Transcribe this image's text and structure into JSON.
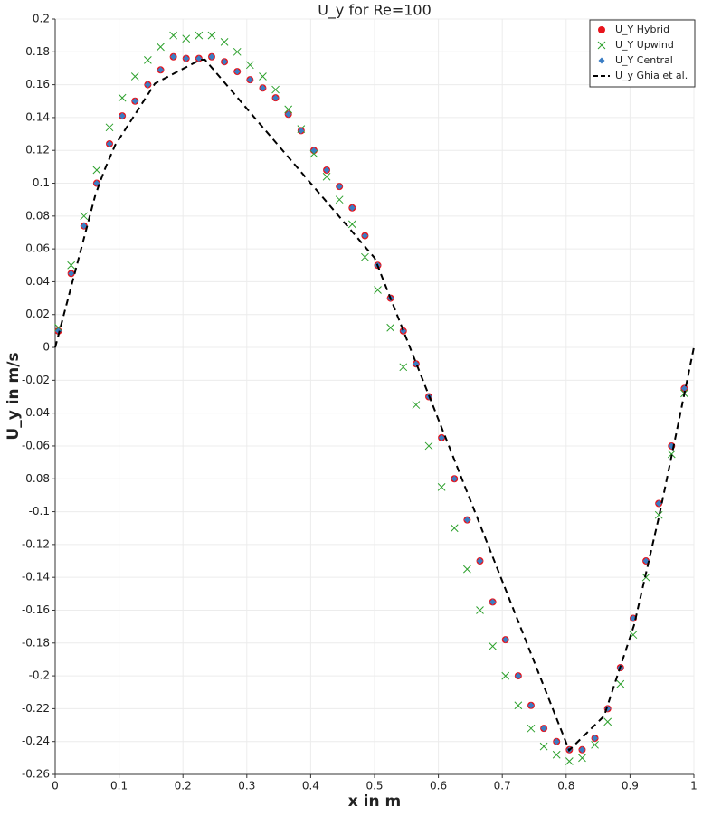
{
  "chart_data": {
    "type": "scatter",
    "title": "U_y for Re=100",
    "xlabel": "x in m",
    "ylabel": "U_y in m/s",
    "xlim": [
      0,
      1
    ],
    "xticks": [
      0,
      0.1,
      0.2,
      0.3,
      0.4,
      0.5,
      0.6,
      0.7,
      0.8,
      0.9,
      1
    ],
    "ylim": [
      -0.26,
      0.2
    ],
    "yticks": [
      -0.26,
      -0.24,
      -0.22,
      -0.2,
      -0.18,
      -0.16,
      -0.14,
      -0.12,
      -0.1,
      -0.08,
      -0.06,
      -0.04,
      -0.02,
      0,
      0.02,
      0.04,
      0.06,
      0.08,
      0.1,
      0.12,
      0.14,
      0.16,
      0.18,
      0.2
    ],
    "grid": true,
    "legend": "upper right",
    "series": [
      {
        "name": "U_Y Hybrid",
        "color": "#e8141c",
        "marker": "circle",
        "x": [
          0.005,
          0.025,
          0.045,
          0.065,
          0.085,
          0.105,
          0.125,
          0.145,
          0.165,
          0.185,
          0.205,
          0.225,
          0.245,
          0.265,
          0.285,
          0.305,
          0.325,
          0.345,
          0.365,
          0.385,
          0.405,
          0.425,
          0.445,
          0.465,
          0.485,
          0.505,
          0.525,
          0.545,
          0.565,
          0.585,
          0.605,
          0.625,
          0.645,
          0.665,
          0.685,
          0.705,
          0.725,
          0.745,
          0.765,
          0.785,
          0.805,
          0.825,
          0.845,
          0.865,
          0.885,
          0.905,
          0.925,
          0.945,
          0.965,
          0.985
        ],
        "values": [
          0.01,
          0.045,
          0.074,
          0.1,
          0.124,
          0.141,
          0.15,
          0.16,
          0.169,
          0.177,
          0.176,
          0.176,
          0.177,
          0.174,
          0.168,
          0.163,
          0.158,
          0.152,
          0.142,
          0.132,
          0.12,
          0.108,
          0.098,
          0.085,
          0.068,
          0.05,
          0.03,
          0.01,
          -0.01,
          -0.03,
          -0.055,
          -0.08,
          -0.105,
          -0.13,
          -0.155,
          -0.178,
          -0.2,
          -0.218,
          -0.232,
          -0.24,
          -0.245,
          -0.245,
          -0.238,
          -0.22,
          -0.195,
          -0.165,
          -0.13,
          -0.095,
          -0.06,
          -0.025
        ]
      },
      {
        "name": "U_Y Upwind",
        "color": "#2ca02c",
        "marker": "x",
        "x": [
          0.005,
          0.025,
          0.045,
          0.065,
          0.085,
          0.105,
          0.125,
          0.145,
          0.165,
          0.185,
          0.205,
          0.225,
          0.245,
          0.265,
          0.285,
          0.305,
          0.325,
          0.345,
          0.365,
          0.385,
          0.405,
          0.425,
          0.445,
          0.465,
          0.485,
          0.505,
          0.525,
          0.545,
          0.565,
          0.585,
          0.605,
          0.625,
          0.645,
          0.665,
          0.685,
          0.705,
          0.725,
          0.745,
          0.765,
          0.785,
          0.805,
          0.825,
          0.845,
          0.865,
          0.885,
          0.905,
          0.925,
          0.945,
          0.965,
          0.985
        ],
        "values": [
          0.012,
          0.05,
          0.08,
          0.108,
          0.134,
          0.152,
          0.165,
          0.175,
          0.183,
          0.19,
          0.188,
          0.19,
          0.19,
          0.186,
          0.18,
          0.172,
          0.165,
          0.157,
          0.145,
          0.133,
          0.118,
          0.104,
          0.09,
          0.075,
          0.055,
          0.035,
          0.012,
          -0.012,
          -0.035,
          -0.06,
          -0.085,
          -0.11,
          -0.135,
          -0.16,
          -0.182,
          -0.2,
          -0.218,
          -0.232,
          -0.243,
          -0.248,
          -0.252,
          -0.25,
          -0.242,
          -0.228,
          -0.205,
          -0.175,
          -0.14,
          -0.102,
          -0.065,
          -0.028
        ]
      },
      {
        "name": "U_Y Central",
        "color": "#3a7dc4",
        "marker": "diamond",
        "x": [
          0.005,
          0.025,
          0.045,
          0.065,
          0.085,
          0.105,
          0.125,
          0.145,
          0.165,
          0.185,
          0.205,
          0.225,
          0.245,
          0.265,
          0.285,
          0.305,
          0.325,
          0.345,
          0.365,
          0.385,
          0.405,
          0.425,
          0.445,
          0.465,
          0.485,
          0.505,
          0.525,
          0.545,
          0.565,
          0.585,
          0.605,
          0.625,
          0.645,
          0.665,
          0.685,
          0.705,
          0.725,
          0.745,
          0.765,
          0.785,
          0.805,
          0.825,
          0.845,
          0.865,
          0.885,
          0.905,
          0.925,
          0.945,
          0.965,
          0.985
        ],
        "values": [
          0.01,
          0.045,
          0.074,
          0.1,
          0.124,
          0.141,
          0.15,
          0.16,
          0.169,
          0.177,
          0.176,
          0.176,
          0.177,
          0.174,
          0.168,
          0.163,
          0.158,
          0.152,
          0.142,
          0.132,
          0.12,
          0.108,
          0.098,
          0.085,
          0.068,
          0.05,
          0.03,
          0.01,
          -0.01,
          -0.03,
          -0.055,
          -0.08,
          -0.105,
          -0.13,
          -0.155,
          -0.178,
          -0.2,
          -0.218,
          -0.232,
          -0.24,
          -0.245,
          -0.245,
          -0.238,
          -0.22,
          -0.195,
          -0.165,
          -0.13,
          -0.095,
          -0.06,
          -0.025
        ]
      },
      {
        "name": "U_y Ghia et al.",
        "color": "#000000",
        "marker": "dashed-line",
        "x": [
          0,
          0.0625,
          0.0703,
          0.0781,
          0.0938,
          0.1563,
          0.2266,
          0.2344,
          0.5,
          0.8047,
          0.8594,
          0.9063,
          0.9453,
          0.9531,
          0.9609,
          0.9688,
          1
        ],
        "values": [
          0,
          0.09233,
          0.10091,
          0.1089,
          0.12317,
          0.16077,
          0.17507,
          0.17527,
          0.05454,
          -0.24533,
          -0.22445,
          -0.16914,
          -0.10313,
          -0.08864,
          -0.07391,
          -0.05906,
          0
        ]
      }
    ]
  }
}
